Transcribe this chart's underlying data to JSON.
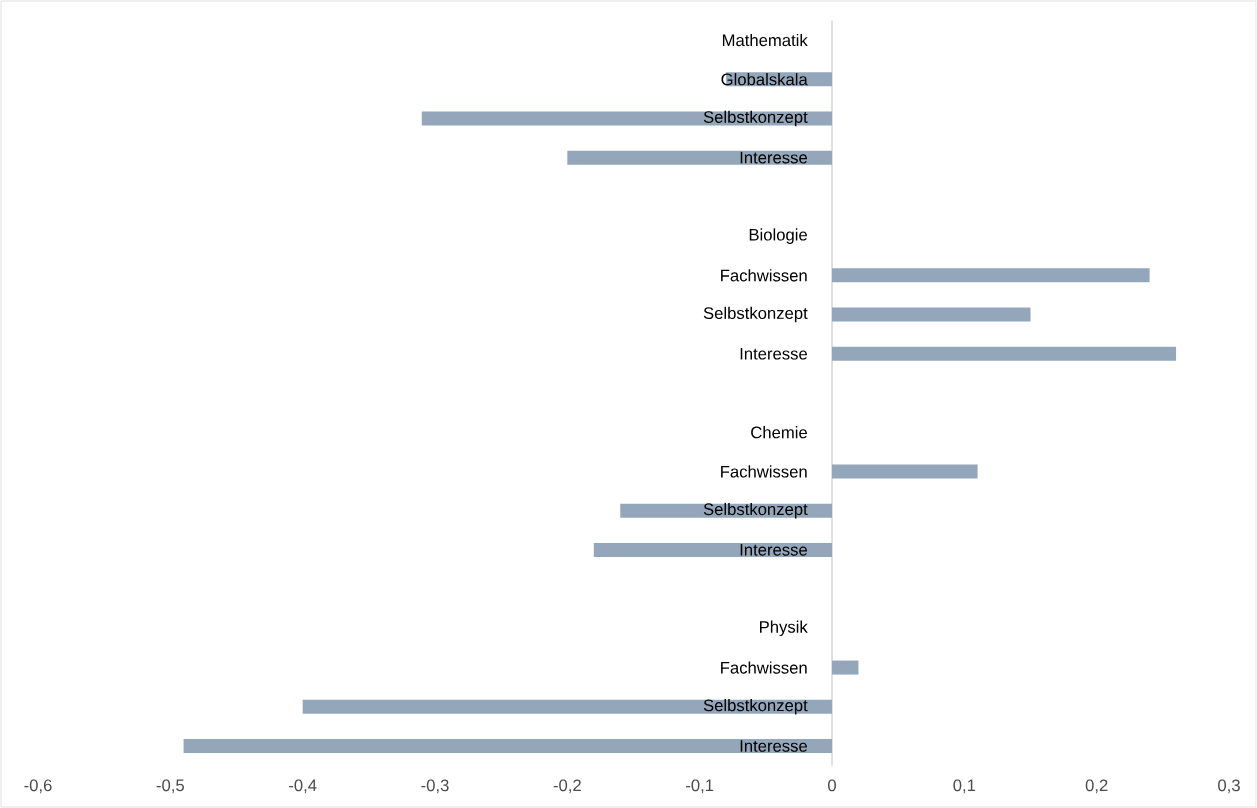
{
  "chart_data": {
    "type": "bar",
    "orientation": "horizontal",
    "categories": [
      "Mathematik",
      "Globalskala",
      "Selbstkonzept",
      "Interesse",
      null,
      "Biologie",
      "Fachwissen",
      "Selbstkonzept",
      "Interesse",
      null,
      "Chemie",
      "Fachwissen",
      "Selbstkonzept",
      "Interesse",
      null,
      "Physik",
      "Fachwissen",
      "Selbstkonzept",
      "Interesse"
    ],
    "values": [
      null,
      -0.08,
      -0.31,
      -0.2,
      null,
      null,
      0.24,
      0.15,
      0.26,
      null,
      null,
      0.11,
      -0.16,
      -0.18,
      null,
      null,
      0.02,
      -0.4,
      -0.49
    ],
    "color": "#94a6ba",
    "xlim": [
      -0.6,
      0.3
    ],
    "xticks": [
      {
        "value": -0.6,
        "label": "-0,6"
      },
      {
        "value": -0.5,
        "label": "-0,5"
      },
      {
        "value": -0.4,
        "label": "-0,4"
      },
      {
        "value": -0.3,
        "label": "-0,3"
      },
      {
        "value": -0.2,
        "label": "-0,2"
      },
      {
        "value": -0.1,
        "label": "-0,1"
      },
      {
        "value": 0,
        "label": "0"
      },
      {
        "value": 0.1,
        "label": "0,1"
      },
      {
        "value": 0.2,
        "label": "0,2"
      },
      {
        "value": 0.3,
        "label": "0,3"
      }
    ]
  }
}
